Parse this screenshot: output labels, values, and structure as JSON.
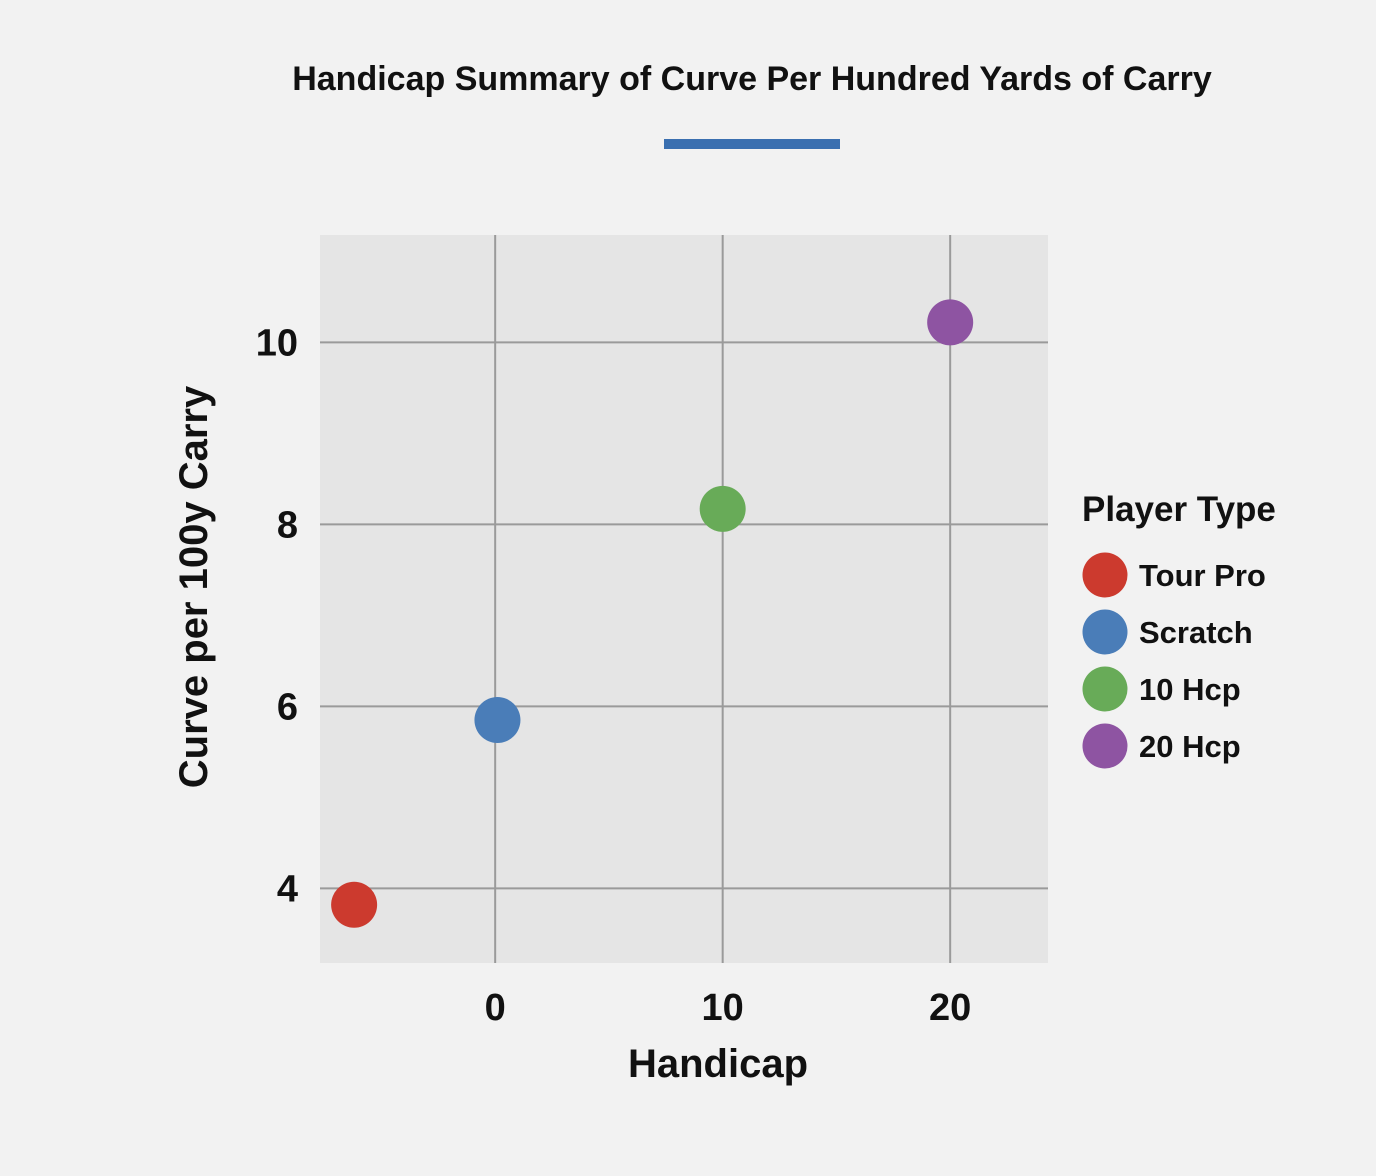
{
  "chart_data": {
    "type": "scatter",
    "title": "Handicap Summary of Curve Per Hundred Yards of Carry",
    "xlabel": "Handicap",
    "ylabel": "Curve per 100y Carry",
    "xlim": [
      -7.7,
      24.3
    ],
    "ylim": [
      3.18,
      11.18
    ],
    "xticks": [
      0,
      10,
      20
    ],
    "yticks": [
      4,
      6,
      8,
      10
    ],
    "grid": true,
    "legend_title": "Player Type",
    "legend_position": "right",
    "title_underline_color": "#3a6fb0",
    "plot_background": "#e5e5e5",
    "grid_color": "#9a9a9a",
    "series": [
      {
        "name": "Tour Pro",
        "color": "#cc3a2e",
        "points": [
          {
            "x": -6.2,
            "y": 3.82
          }
        ]
      },
      {
        "name": "Scratch",
        "color": "#4a7db8",
        "points": [
          {
            "x": 0.1,
            "y": 5.85
          }
        ]
      },
      {
        "name": "10 Hcp",
        "color": "#68ab58",
        "points": [
          {
            "x": 10.0,
            "y": 8.17
          }
        ]
      },
      {
        "name": "20 Hcp",
        "color": "#8e54a2",
        "points": [
          {
            "x": 20.0,
            "y": 10.22
          }
        ]
      }
    ]
  }
}
